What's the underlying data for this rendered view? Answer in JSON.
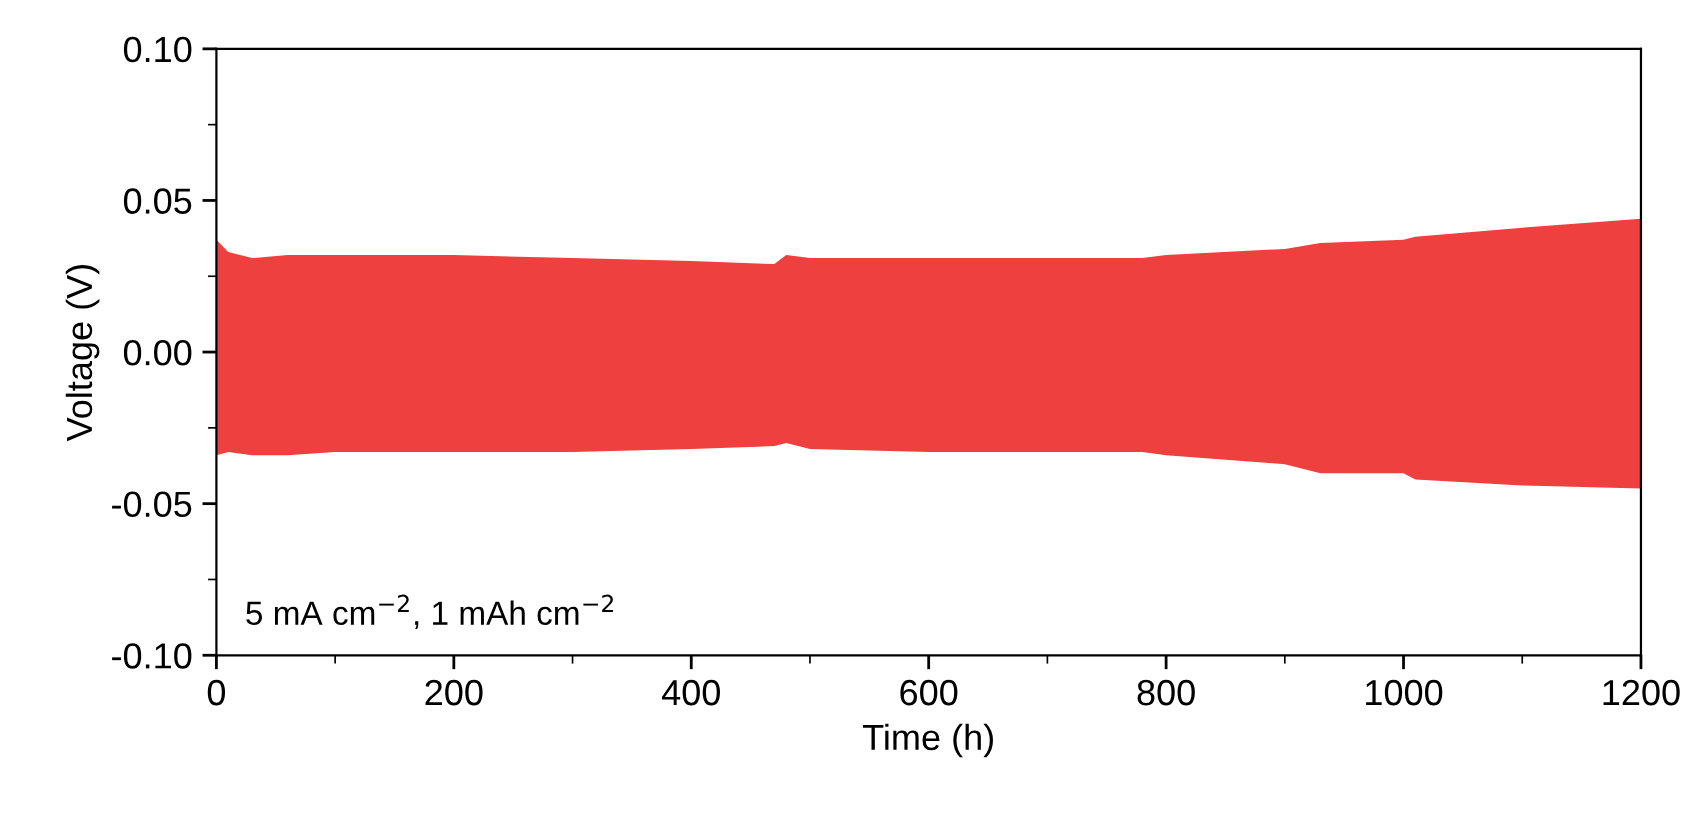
{
  "chart_data": {
    "type": "area",
    "xlabel": "Time (h)",
    "ylabel": "Voltage (V)",
    "xlim": [
      0,
      1200
    ],
    "xticks": [
      0,
      200,
      400,
      600,
      800,
      1000,
      1200
    ],
    "ylim": [
      -0.1,
      0.1
    ],
    "yticks": [
      {
        "value": -0.1,
        "label": "-0.10"
      },
      {
        "value": -0.05,
        "label": "-0.05"
      },
      {
        "value": 0,
        "label": "0.00"
      },
      {
        "value": 0.05,
        "label": "0.05"
      },
      {
        "value": 0.1,
        "label": "0.10"
      }
    ],
    "annotations": [
      "5 mA cm$^{−2}$, 1 mAh cm$^{−2}$"
    ],
    "grid": false,
    "series": [
      {
        "color": "#ef4040",
        "x": [
          0,
          10,
          30,
          60,
          100,
          200,
          300,
          400,
          470,
          480,
          500,
          600,
          700,
          780,
          800,
          900,
          930,
          1000,
          1010,
          1100,
          1200
        ],
        "values": [
          0.037,
          0.033,
          0.031,
          0.032,
          0.032,
          0.032,
          0.031,
          0.03,
          0.029,
          0.032,
          0.031,
          0.031,
          0.031,
          0.031,
          0.032,
          0.034,
          0.036,
          0.037,
          0.038,
          0.041,
          0.044
        ]
      },
      {
        "color": "#ef4040",
        "x": [
          0,
          10,
          30,
          60,
          100,
          200,
          300,
          400,
          470,
          480,
          500,
          600,
          700,
          780,
          800,
          900,
          930,
          1000,
          1010,
          1100,
          1200
        ],
        "values": [
          -0.034,
          -0.033,
          -0.034,
          -0.034,
          -0.033,
          -0.033,
          -0.033,
          -0.032,
          -0.031,
          -0.03,
          -0.032,
          -0.033,
          -0.033,
          -0.033,
          -0.034,
          -0.037,
          -0.04,
          -0.04,
          -0.042,
          -0.044,
          -0.045
        ]
      }
    ]
  }
}
